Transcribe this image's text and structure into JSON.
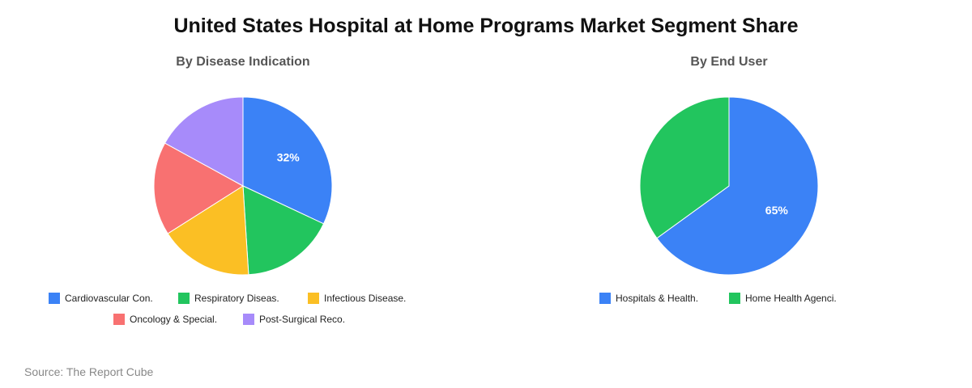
{
  "title": "United States Hospital at Home Programs Market Segment Share",
  "source": "Source: The Report Cube",
  "chart_data": [
    {
      "type": "pie",
      "title": "By Disease Indication",
      "labels": [
        "Cardiovascular Con.",
        "Respiratory Diseas.",
        "Infectious Disease.",
        "Oncology & Special.",
        "Post-Surgical Reco."
      ],
      "values": [
        32,
        17,
        17,
        17,
        17
      ],
      "colors": [
        "#3b82f6",
        "#22c55e",
        "#fbbf24",
        "#f87171",
        "#a78bfa"
      ],
      "data_labels": [
        "32%",
        "",
        "",
        "",
        ""
      ]
    },
    {
      "type": "pie",
      "title": "By End User",
      "labels": [
        "Hospitals & Health.",
        "Home Health Agenci."
      ],
      "values": [
        65,
        35
      ],
      "colors": [
        "#3b82f6",
        "#22c55e"
      ],
      "data_labels": [
        "65%",
        ""
      ]
    }
  ]
}
